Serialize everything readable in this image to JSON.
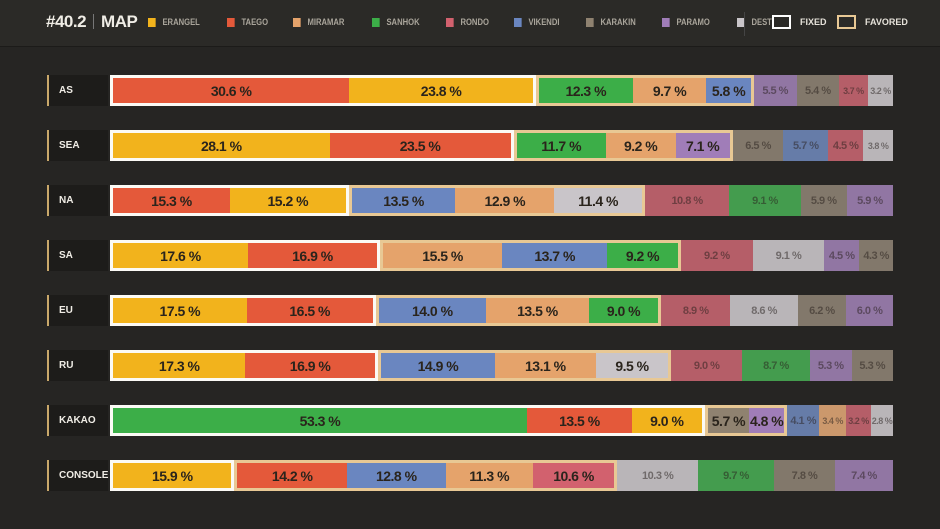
{
  "header": {
    "season": "#40.2",
    "title": "MAP"
  },
  "legend": [
    {
      "name": "ERANGEL",
      "color": "#f2b31c"
    },
    {
      "name": "TAEGO",
      "color": "#e4593a"
    },
    {
      "name": "MIRAMAR",
      "color": "#e5a36b"
    },
    {
      "name": "SANHOK",
      "color": "#3cae48"
    },
    {
      "name": "RONDO",
      "color": "#d2616e"
    },
    {
      "name": "VIKENDI",
      "color": "#6a86c0"
    },
    {
      "name": "KARAKIN",
      "color": "#8f8270"
    },
    {
      "name": "PARAMO",
      "color": "#a07db8"
    },
    {
      "name": "DESTON",
      "color": "#c9c5c9"
    }
  ],
  "markers": {
    "fixed": "FIXED",
    "favored": "FAVORED"
  },
  "chart_data": {
    "type": "bar",
    "stacked": true,
    "title": "#40.2 MAP",
    "unit": "%",
    "rows": [
      {
        "region": "AS",
        "fixed": [
          [
            "TAEGO",
            30.6
          ],
          [
            "ERANGEL",
            23.8
          ]
        ],
        "favored": [
          [
            "SANHOK",
            12.3
          ],
          [
            "MIRAMAR",
            9.7
          ],
          [
            "VIKENDI",
            5.8
          ]
        ],
        "other": [
          [
            "PARAMO",
            5.5
          ],
          [
            "KARAKIN",
            5.4
          ],
          [
            "RONDO",
            3.7
          ],
          [
            "DESTON",
            3.2
          ]
        ]
      },
      {
        "region": "SEA",
        "fixed": [
          [
            "ERANGEL",
            28.1
          ],
          [
            "TAEGO",
            23.5
          ]
        ],
        "favored": [
          [
            "SANHOK",
            11.7
          ],
          [
            "MIRAMAR",
            9.2
          ],
          [
            "PARAMO",
            7.1
          ]
        ],
        "other": [
          [
            "KARAKIN",
            6.5
          ],
          [
            "VIKENDI",
            5.7
          ],
          [
            "RONDO",
            4.5
          ],
          [
            "DESTON",
            3.8
          ]
        ]
      },
      {
        "region": "NA",
        "fixed": [
          [
            "TAEGO",
            15.3
          ],
          [
            "ERANGEL",
            15.2
          ]
        ],
        "favored": [
          [
            "VIKENDI",
            13.5
          ],
          [
            "MIRAMAR",
            12.9
          ],
          [
            "DESTON",
            11.4
          ]
        ],
        "other": [
          [
            "RONDO",
            10.8
          ],
          [
            "SANHOK",
            9.1
          ],
          [
            "KARAKIN",
            5.9
          ],
          [
            "PARAMO",
            5.9
          ]
        ]
      },
      {
        "region": "SA",
        "fixed": [
          [
            "ERANGEL",
            17.6
          ],
          [
            "TAEGO",
            16.9
          ]
        ],
        "favored": [
          [
            "MIRAMAR",
            15.5
          ],
          [
            "VIKENDI",
            13.7
          ],
          [
            "SANHOK",
            9.2
          ]
        ],
        "other": [
          [
            "RONDO",
            9.2
          ],
          [
            "DESTON",
            9.1
          ],
          [
            "PARAMO",
            4.5
          ],
          [
            "KARAKIN",
            4.3
          ]
        ]
      },
      {
        "region": "EU",
        "fixed": [
          [
            "ERANGEL",
            17.5
          ],
          [
            "TAEGO",
            16.5
          ]
        ],
        "favored": [
          [
            "VIKENDI",
            14.0
          ],
          [
            "MIRAMAR",
            13.5
          ],
          [
            "SANHOK",
            9.0
          ]
        ],
        "other": [
          [
            "RONDO",
            8.9
          ],
          [
            "DESTON",
            8.6
          ],
          [
            "KARAKIN",
            6.2
          ],
          [
            "PARAMO",
            6.0
          ]
        ]
      },
      {
        "region": "RU",
        "fixed": [
          [
            "ERANGEL",
            17.3
          ],
          [
            "TAEGO",
            16.9
          ]
        ],
        "favored": [
          [
            "VIKENDI",
            14.9
          ],
          [
            "MIRAMAR",
            13.1
          ],
          [
            "DESTON",
            9.5
          ]
        ],
        "other": [
          [
            "RONDO",
            9.0
          ],
          [
            "SANHOK",
            8.7
          ],
          [
            "PARAMO",
            5.3
          ],
          [
            "KARAKIN",
            5.3
          ]
        ]
      },
      {
        "region": "KAKAO",
        "fixed": [
          [
            "SANHOK",
            53.3
          ],
          [
            "TAEGO",
            13.5
          ],
          [
            "ERANGEL",
            9.0
          ]
        ],
        "favored": [
          [
            "KARAKIN",
            5.7
          ],
          [
            "PARAMO",
            4.8
          ]
        ],
        "other": [
          [
            "VIKENDI",
            4.1
          ],
          [
            "MIRAMAR",
            3.4
          ],
          [
            "RONDO",
            3.2
          ],
          [
            "DESTON",
            2.8
          ]
        ]
      },
      {
        "region": "CONSOLE",
        "fixed": [
          [
            "ERANGEL",
            15.9
          ]
        ],
        "favored": [
          [
            "TAEGO",
            14.2
          ],
          [
            "VIKENDI",
            12.8
          ],
          [
            "MIRAMAR",
            11.3
          ],
          [
            "RONDO",
            10.6
          ]
        ],
        "other": [
          [
            "DESTON",
            10.3
          ],
          [
            "SANHOK",
            9.7
          ],
          [
            "KARAKIN",
            7.8
          ],
          [
            "PARAMO",
            7.4
          ]
        ]
      }
    ]
  }
}
